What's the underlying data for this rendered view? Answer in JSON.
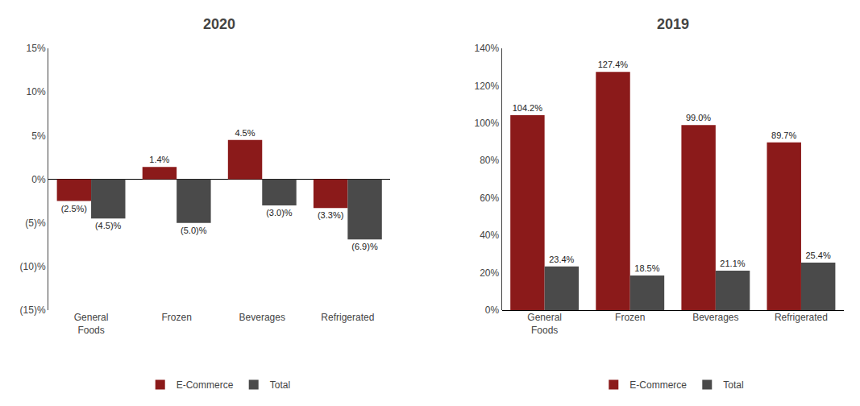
{
  "chart_data": [
    {
      "type": "bar",
      "title": "2020",
      "categories": [
        "General\nFoods",
        "Frozen",
        "Beverages",
        "Refrigerated"
      ],
      "series": [
        {
          "name": "E-Commerce",
          "color": "#8B1A1A",
          "values": [
            -2.5,
            1.4,
            4.5,
            -3.3
          ],
          "value_labels": [
            "(2.5%)",
            "1.4%",
            "4.5%",
            "(3.3%)"
          ]
        },
        {
          "name": "Total",
          "color": "#4A4A4A",
          "values": [
            -4.5,
            -5.0,
            -3.0,
            -6.9
          ],
          "value_labels": [
            "(4.5)%",
            "(5.0)%",
            "(3.0)%",
            "(6.9)%"
          ]
        }
      ],
      "ylim": [
        -15,
        15
      ],
      "yticks": [
        {
          "value": -15,
          "label": "(15)%"
        },
        {
          "value": -10,
          "label": "(10)%"
        },
        {
          "value": -5,
          "label": "(5)%"
        },
        {
          "value": 0,
          "label": "0%"
        },
        {
          "value": 5,
          "label": "5%"
        },
        {
          "value": 10,
          "label": "10%"
        },
        {
          "value": 15,
          "label": "15%"
        }
      ],
      "grid": false,
      "legend": "bottom",
      "data_labels": true
    },
    {
      "type": "bar",
      "title": "2019",
      "categories": [
        "General\nFoods",
        "Frozen",
        "Beverages",
        "Refrigerated"
      ],
      "series": [
        {
          "name": "E-Commerce",
          "color": "#8B1A1A",
          "values": [
            104.2,
            127.4,
            99.0,
            89.7
          ],
          "value_labels": [
            "104.2%",
            "127.4%",
            "99.0%",
            "89.7%"
          ]
        },
        {
          "name": "Total",
          "color": "#4A4A4A",
          "values": [
            23.4,
            18.5,
            21.1,
            25.4
          ],
          "value_labels": [
            "23.4%",
            "18.5%",
            "21.1%",
            "25.4%"
          ]
        }
      ],
      "ylim": [
        0,
        140
      ],
      "yticks": [
        {
          "value": 0,
          "label": "0%"
        },
        {
          "value": 20,
          "label": "20%"
        },
        {
          "value": 40,
          "label": "40%"
        },
        {
          "value": 60,
          "label": "60%"
        },
        {
          "value": 80,
          "label": "80%"
        },
        {
          "value": 100,
          "label": "100%"
        },
        {
          "value": 120,
          "label": "120%"
        },
        {
          "value": 140,
          "label": "140%"
        }
      ],
      "grid": false,
      "legend": "bottom",
      "data_labels": true
    }
  ]
}
